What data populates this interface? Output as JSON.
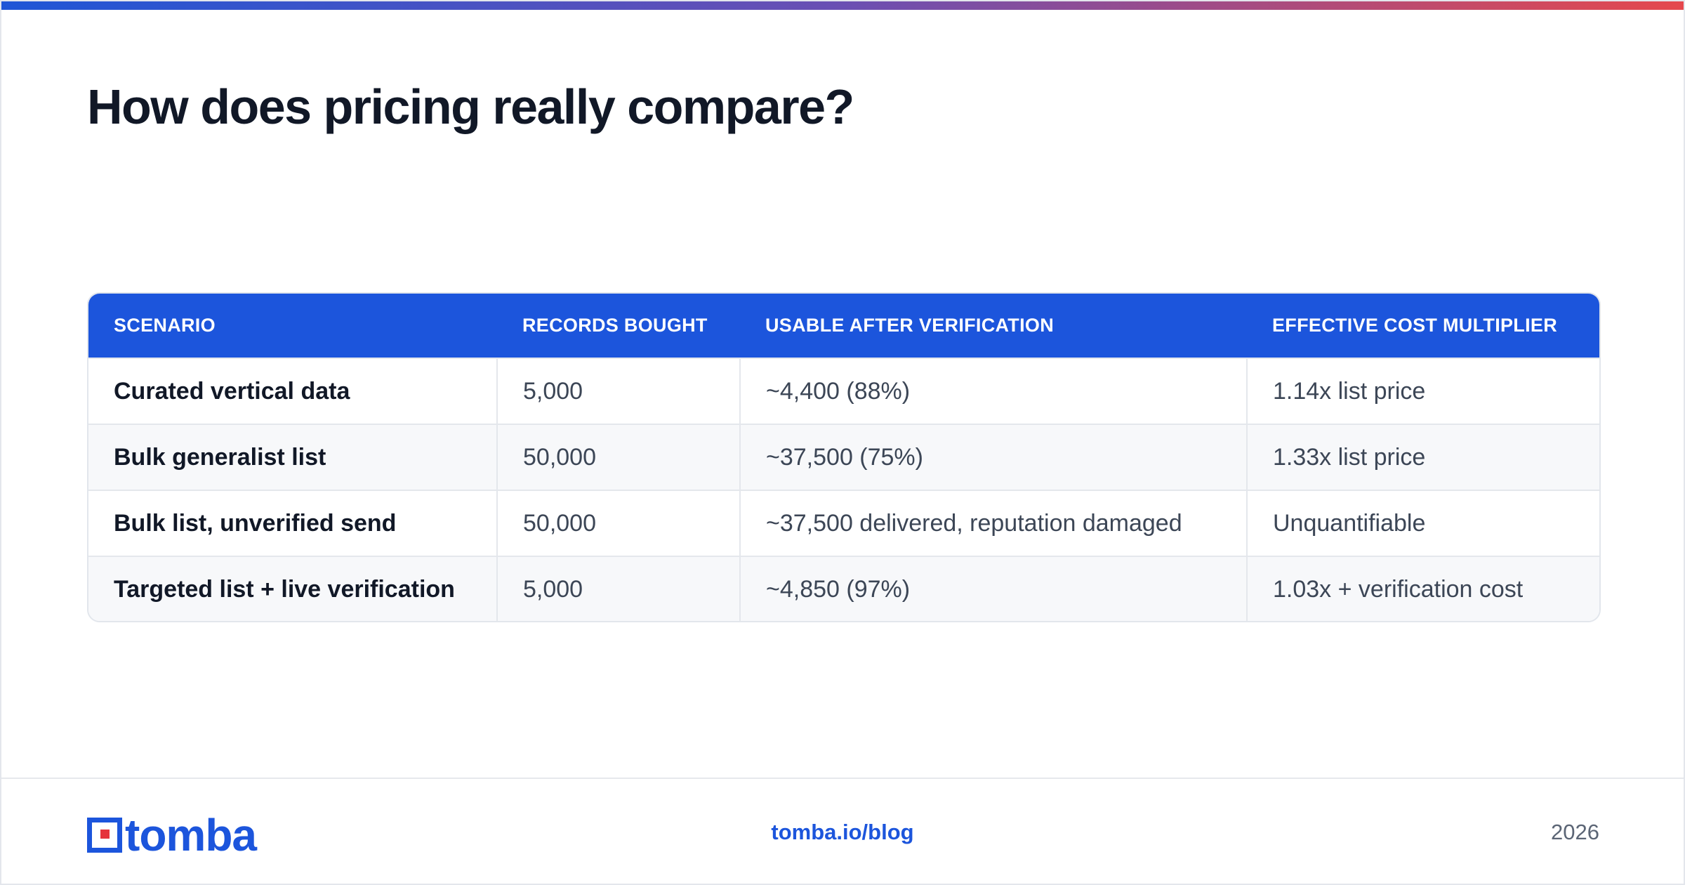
{
  "slide": {
    "title": "How does pricing really compare?",
    "accent_gradient": [
      "#1f56d6",
      "#6a4fb3",
      "#e5484d"
    ]
  },
  "table": {
    "header_color": "#1c55dc",
    "columns": [
      "SCENARIO",
      "RECORDS BOUGHT",
      "USABLE AFTER VERIFICATION",
      "EFFECTIVE COST MULTIPLIER"
    ],
    "rows": [
      [
        "Curated vertical data",
        "5,000",
        "~4,400 (88%)",
        "1.14x list price"
      ],
      [
        "Bulk generalist list",
        "50,000",
        "~37,500 (75%)",
        "1.33x list price"
      ],
      [
        "Bulk list, unverified send",
        "50,000",
        "~37,500 delivered, reputation damaged",
        "Unquantifiable"
      ],
      [
        "Targeted list + live verification",
        "5,000",
        "~4,850 (97%)",
        "1.03x + verification cost"
      ]
    ]
  },
  "footer": {
    "logo_text": "tomba",
    "logo_icon": "tomba-logo-icon",
    "link": "tomba.io/blog",
    "year": "2026",
    "brand_color": "#1c55dc"
  }
}
